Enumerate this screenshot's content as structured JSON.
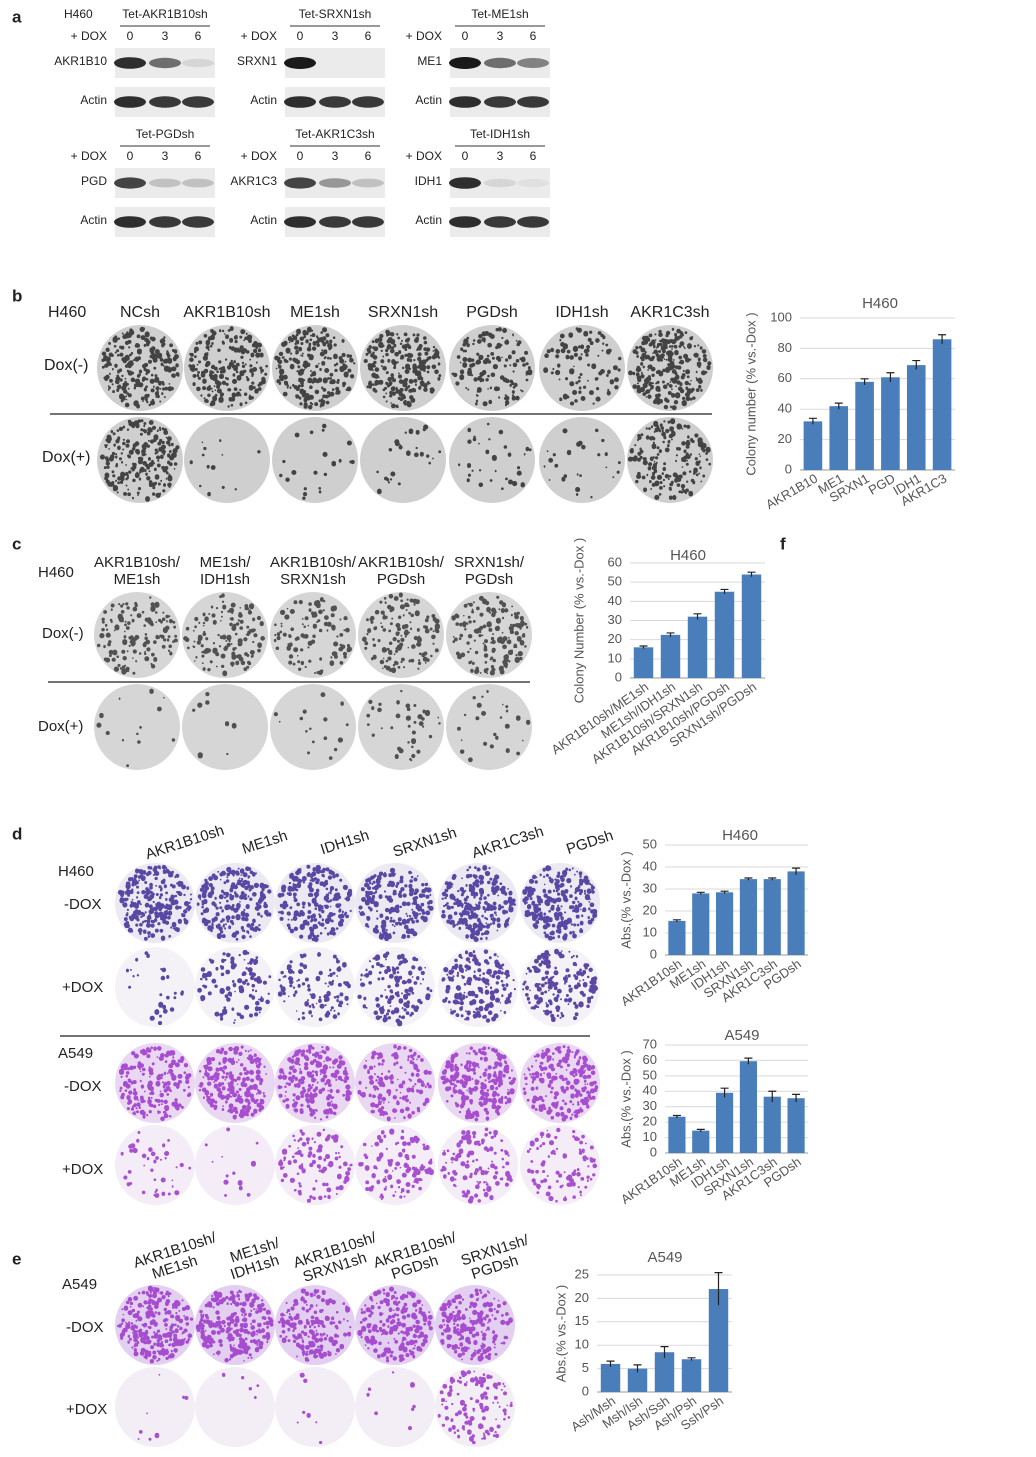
{
  "panel_labels": [
    "a",
    "b",
    "c",
    "d",
    "e",
    "f"
  ],
  "blots": {
    "cell_line": "H460",
    "items": [
      {
        "title": "Tet-AKR1B10sh",
        "dox": "+ DOX",
        "times": [
          "0",
          "3",
          "6"
        ],
        "protein": "AKR1B10",
        "loading": "Actin"
      },
      {
        "title": "Tet-SRXN1sh",
        "dox": "+ DOX",
        "times": [
          "0",
          "3",
          "6"
        ],
        "protein": "SRXN1",
        "loading": "Actin"
      },
      {
        "title": "Tet-ME1sh",
        "dox": "+ DOX",
        "times": [
          "0",
          "3",
          "6"
        ],
        "protein": "ME1",
        "loading": "Actin"
      },
      {
        "title": "Tet-PGDsh",
        "dox": "+ DOX",
        "times": [
          "0",
          "3",
          "6"
        ],
        "protein": "PGD",
        "loading": "Actin"
      },
      {
        "title": "Tet-AKR1C3sh",
        "dox": "+ DOX",
        "times": [
          "0",
          "3",
          "6"
        ],
        "protein": "AKR1C3",
        "loading": "Actin"
      },
      {
        "title": "Tet-IDH1sh",
        "dox": "+ DOX",
        "times": [
          "0",
          "3",
          "6"
        ],
        "protein": "IDH1",
        "loading": "Actin"
      }
    ]
  },
  "plates_b": {
    "cell_line": "H460",
    "columns": [
      [
        "NCsh"
      ],
      [
        "AKR1B10sh"
      ],
      [
        "ME1sh"
      ],
      [
        "SRXN1sh"
      ],
      [
        "PGDsh"
      ],
      [
        "IDH1sh"
      ],
      [
        "AKR1C3sh"
      ]
    ],
    "rows": [
      "Dox(-)",
      "Dox(+)"
    ]
  },
  "plates_c": {
    "cell_line": "H460",
    "columns": [
      [
        "AKR1B10sh/",
        "ME1sh"
      ],
      [
        "ME1sh/",
        "IDH1sh"
      ],
      [
        "AKR1B10sh/",
        "SRXN1sh"
      ],
      [
        "AKR1B10sh/",
        "PGDsh"
      ],
      [
        "SRXN1sh/",
        "PGDsh"
      ]
    ],
    "rows": [
      "Dox(-)",
      "Dox(+)"
    ]
  },
  "plates_d": {
    "columns": [
      [
        "AKR1B10sh"
      ],
      [
        "ME1sh"
      ],
      [
        "IDH1sh"
      ],
      [
        "SRXN1sh"
      ],
      [
        "AKR1C3sh"
      ],
      [
        "PGDsh"
      ]
    ],
    "groups": [
      {
        "cell_line": "H460",
        "rows": [
          "-DOX",
          "+DOX"
        ]
      },
      {
        "cell_line": "A549",
        "rows": [
          "-DOX",
          "+DOX"
        ]
      }
    ]
  },
  "plates_e": {
    "cell_line": "A549",
    "columns": [
      [
        "AKR1B10sh/",
        "ME1sh"
      ],
      [
        "ME1sh/",
        "IDH1sh"
      ],
      [
        "AKR1B10sh/",
        "SRXN1sh"
      ],
      [
        "AKR1B10sh/",
        "PGDsh"
      ],
      [
        "SRXN1sh/",
        "PGDsh"
      ]
    ],
    "rows": [
      "-DOX",
      "+DOX"
    ]
  },
  "chart_data": [
    {
      "type": "bar",
      "title": "H460",
      "y_label": "Colony number (% vs.-Dox )",
      "categories": [
        "AKR1B10",
        "ME1",
        "SRXN1",
        "PGD",
        "IDH1",
        "AKR1C3"
      ],
      "values": [
        32,
        42,
        58,
        61,
        69,
        86
      ],
      "errors": [
        2,
        2,
        2,
        3,
        3,
        3
      ],
      "color": "#4a7ebb",
      "ylim": [
        0,
        100
      ],
      "yticks": [
        0,
        20,
        40,
        60,
        80,
        100
      ],
      "grid": true
    },
    {
      "type": "bar",
      "title": "H460",
      "y_label": "Colony Number (% vs.-Dox )",
      "categories": [
        "AKR1B10sh/ME1sh",
        "ME1sh/IDH1sh",
        "AKR1B10sh/SRXN1sh",
        "AKR1B10sh/PGDsh",
        "SRXN1sh/PGDsh"
      ],
      "values": [
        16,
        22.5,
        32,
        45,
        54
      ],
      "errors": [
        0.7,
        1,
        1.5,
        1.2,
        1.2
      ],
      "color": "#4a7ebb",
      "ylim": [
        0,
        60
      ],
      "yticks": [
        0,
        10,
        20,
        30,
        40,
        50,
        60
      ],
      "grid": true
    },
    {
      "type": "bar",
      "title": "H460",
      "y_label": "Abs.(% vs.-Dox )",
      "categories": [
        "AKR1B10sh",
        "ME1sh",
        "IDH1sh",
        "SRXN1sh",
        "AKR1C3sh",
        "PGDsh"
      ],
      "values": [
        15.5,
        28,
        28.5,
        34.5,
        34.5,
        38
      ],
      "errors": [
        0.5,
        0.5,
        0.5,
        0.5,
        0.5,
        1.5
      ],
      "color": "#4a7ebb",
      "ylim": [
        0,
        50
      ],
      "yticks": [
        0,
        10,
        20,
        30,
        40,
        50
      ],
      "grid": true
    },
    {
      "type": "bar",
      "title": "A549",
      "y_label": "Abs.(% vs.-Dox )",
      "categories": [
        "AKR1B10sh",
        "ME1sh",
        "IDH1sh",
        "SRXN1sh",
        "AKR1C3sh",
        "PGDsh"
      ],
      "values": [
        23.5,
        14.5,
        39,
        59.5,
        36.5,
        35.5
      ],
      "errors": [
        0.8,
        0.8,
        3,
        2,
        3.5,
        2.5
      ],
      "color": "#4a7ebb",
      "ylim": [
        0,
        70
      ],
      "yticks": [
        0,
        10,
        20,
        30,
        40,
        50,
        60,
        70
      ],
      "grid": true
    },
    {
      "type": "bar",
      "title": "A549",
      "y_label": "Abs.(% vs.-Dox )",
      "categories": [
        "Ash/Msh",
        "Msh/Ish",
        "Ash/Ssh",
        "Ash/Psh",
        "Ssh/Psh"
      ],
      "values": [
        6,
        5,
        8.5,
        7,
        22
      ],
      "errors": [
        0.6,
        0.8,
        1.2,
        0.3,
        3.5
      ],
      "color": "#4a7ebb",
      "ylim": [
        0,
        25
      ],
      "yticks": [
        0,
        5,
        10,
        15,
        20,
        25
      ],
      "grid": true
    }
  ]
}
